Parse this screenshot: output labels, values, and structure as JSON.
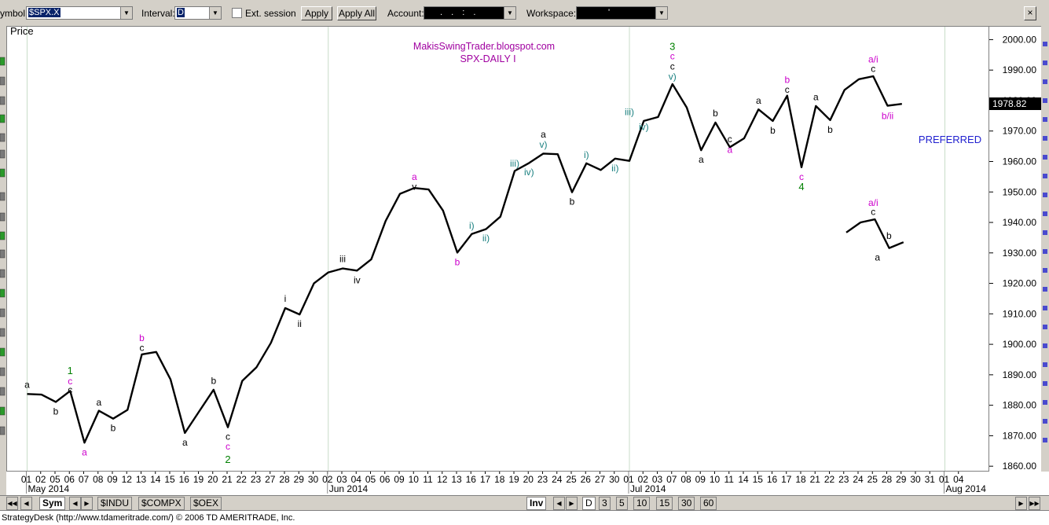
{
  "toolbar": {
    "symbol_label": "ymbol:",
    "symbol_value": "$SPX.X",
    "interval_label": "Interval:",
    "interval_value": "D",
    "ext_session_label": "Ext. session",
    "apply_label": "Apply",
    "apply_all_label": "Apply All",
    "account_label": "Account:",
    "account_value": ". . : .",
    "workspace_label": "Workspace:",
    "workspace_value": "'",
    "close_glyph": "×"
  },
  "panel": {
    "price_label": "Price"
  },
  "price_readout": "1978.82",
  "bottom": {
    "sym_tab": "Sym",
    "symbol_tabs": [
      "$INDU",
      "$COMPX",
      "$OEX"
    ],
    "inv_tab": "Inv",
    "interval_tabs": [
      "D",
      "3",
      "5",
      "10",
      "15",
      "30",
      "60"
    ]
  },
  "status_text": "StrategyDesk (http://www.tdameritrade.com/) © 2006 TD AMERITRADE, Inc.",
  "colors": {
    "line": "#000000",
    "magenta": "#cc00cc",
    "green": "#008000",
    "teal": "#1a8080",
    "blue": "#1f1fcf",
    "purple": "#a000a0",
    "grid": "#c8dcc8"
  },
  "chart_data": {
    "type": "line",
    "title": "MakisSwingTrader.blogspot.com",
    "subtitle": "SPX-DAILY I",
    "ylabel": "Price",
    "ylim": [
      1855,
      2005
    ],
    "y_ticks": [
      "2000.00",
      "1990.00",
      "1980.00",
      "1970.00",
      "1960.00",
      "1950.00",
      "1940.00",
      "1930.00",
      "1920.00",
      "1910.00",
      "1900.00",
      "1890.00",
      "1880.00",
      "1870.00",
      "1860.00"
    ],
    "x_ticks": [
      "01",
      "02",
      "05",
      "06",
      "07",
      "08",
      "09",
      "12",
      "13",
      "14",
      "15",
      "16",
      "19",
      "20",
      "21",
      "22",
      "23",
      "27",
      "28",
      "29",
      "30",
      "02",
      "03",
      "04",
      "05",
      "06",
      "09",
      "10",
      "11",
      "12",
      "13",
      "16",
      "17",
      "18",
      "19",
      "20",
      "23",
      "24",
      "25",
      "26",
      "27",
      "30",
      "01",
      "02",
      "03",
      "07",
      "08",
      "09",
      "10",
      "11",
      "14",
      "15",
      "16",
      "17",
      "18",
      "21",
      "22",
      "23",
      "24",
      "25",
      "28",
      "29",
      "30",
      "31",
      "01",
      "04"
    ],
    "month_labels": [
      {
        "text": "May 2014",
        "index": 0
      },
      {
        "text": "Jun 2014",
        "index": 21
      },
      {
        "text": "Jul 2014",
        "index": 42
      },
      {
        "text": "Aug 2014",
        "index": 64
      }
    ],
    "series": [
      {
        "values": [
          1883.7,
          1883.5,
          1881.1,
          1884.7,
          1867.7,
          1878.2,
          1875.6,
          1878.5,
          1896.7,
          1897.5,
          1888.5,
          1870.9,
          1878.0,
          1885.1,
          1872.8,
          1888.0,
          1892.5,
          1900.5,
          1911.9,
          1909.8,
          1920.0,
          1923.6,
          1924.9,
          1924.2,
          1927.9,
          1940.5,
          1949.4,
          1951.3,
          1950.8,
          1943.9,
          1930.1,
          1936.2,
          1937.8,
          1941.9,
          1956.9,
          1959.5,
          1962.6,
          1962.4,
          1949.9,
          1959.4,
          1957.2,
          1960.96,
          1960.2,
          1973.3,
          1974.6,
          1985.4,
          1977.7,
          1963.7,
          1972.8,
          1964.7,
          1967.6,
          1977.1,
          1973.3,
          1981.6,
          1958.1,
          1978.2,
          1973.6,
          1983.5,
          1987.0,
          1987.98,
          1978.3,
          1978.9
        ],
        "start_index": 0
      },
      {
        "values": [
          1936.7,
          1940.0,
          1941.0,
          1931.6,
          1933.5
        ],
        "start_index": 56
      }
    ],
    "annotations": [
      {
        "text": "1",
        "x": 3,
        "y": 1891.2,
        "color": "green"
      },
      {
        "text": "a",
        "x": 0,
        "y": 1886.8,
        "color": "black"
      },
      {
        "text": "c",
        "x": 3,
        "y": 1887.9,
        "color": "magenta"
      },
      {
        "text": "c",
        "x": 3,
        "y": 1885.1,
        "color": "black"
      },
      {
        "text": "b",
        "x": 2,
        "y": 1878.0,
        "color": "black"
      },
      {
        "text": "a",
        "x": 4,
        "y": 1864.6,
        "color": "magenta"
      },
      {
        "text": "a",
        "x": 5,
        "y": 1880.9,
        "color": "black"
      },
      {
        "text": "b",
        "x": 6,
        "y": 1872.5,
        "color": "black"
      },
      {
        "text": "b",
        "x": 8,
        "y": 1902.1,
        "color": "magenta"
      },
      {
        "text": "c",
        "x": 8,
        "y": 1898.9,
        "color": "black"
      },
      {
        "text": "a",
        "x": 11,
        "y": 1867.8,
        "color": "black"
      },
      {
        "text": "b",
        "x": 13,
        "y": 1888.0,
        "color": "black"
      },
      {
        "text": "c",
        "x": 14,
        "y": 1869.7,
        "color": "black"
      },
      {
        "text": "c",
        "x": 14,
        "y": 1866.5,
        "color": "magenta"
      },
      {
        "text": "2",
        "x": 14,
        "y": 1862.1,
        "color": "green"
      },
      {
        "text": "i",
        "x": 18,
        "y": 1915.0,
        "color": "black"
      },
      {
        "text": "ii",
        "x": 19,
        "y": 1906.7,
        "color": "black"
      },
      {
        "text": "iii",
        "x": 22,
        "y": 1928.0,
        "color": "black"
      },
      {
        "text": "iv",
        "x": 23,
        "y": 1921.1,
        "color": "black"
      },
      {
        "text": "a",
        "x": 27,
        "y": 1955.0,
        "color": "magenta"
      },
      {
        "text": "v",
        "x": 27,
        "y": 1951.8,
        "color": "black"
      },
      {
        "text": "b",
        "x": 30,
        "y": 1927.0,
        "color": "magenta"
      },
      {
        "text": "i)",
        "x": 31,
        "y": 1939.0,
        "color": "teal"
      },
      {
        "text": "ii)",
        "x": 32,
        "y": 1934.9,
        "color": "teal"
      },
      {
        "text": "iii)",
        "x": 34,
        "y": 1959.3,
        "color": "teal"
      },
      {
        "text": "iv)",
        "x": 35,
        "y": 1956.5,
        "color": "teal"
      },
      {
        "text": "a",
        "x": 36,
        "y": 1968.9,
        "color": "black"
      },
      {
        "text": "v)",
        "x": 36,
        "y": 1965.6,
        "color": "teal"
      },
      {
        "text": "b",
        "x": 38,
        "y": 1946.8,
        "color": "black"
      },
      {
        "text": "i)",
        "x": 39,
        "y": 1962.2,
        "color": "teal"
      },
      {
        "text": "ii)",
        "x": 41,
        "y": 1957.8,
        "color": "teal"
      },
      {
        "text": "iii)",
        "x": 42,
        "y": 1976.3,
        "color": "teal"
      },
      {
        "text": "iv)",
        "x": 43,
        "y": 1971.3,
        "color": "teal"
      },
      {
        "text": "3",
        "x": 45,
        "y": 1997.6,
        "color": "green"
      },
      {
        "text": "c",
        "x": 45,
        "y": 1994.5,
        "color": "magenta"
      },
      {
        "text": "c",
        "x": 45,
        "y": 1991.2,
        "color": "black"
      },
      {
        "text": "v)",
        "x": 45,
        "y": 1987.9,
        "color": "teal"
      },
      {
        "text": "a",
        "x": 47,
        "y": 1960.6,
        "color": "black"
      },
      {
        "text": "b",
        "x": 48,
        "y": 1975.9,
        "color": "black"
      },
      {
        "text": "c",
        "x": 49,
        "y": 1967.3,
        "color": "black"
      },
      {
        "text": "a",
        "x": 49,
        "y": 1963.9,
        "color": "magenta"
      },
      {
        "text": "a",
        "x": 51,
        "y": 1980.0,
        "color": "black"
      },
      {
        "text": "b",
        "x": 52,
        "y": 1970.2,
        "color": "black"
      },
      {
        "text": "b",
        "x": 53,
        "y": 1986.8,
        "color": "magenta"
      },
      {
        "text": "c",
        "x": 53,
        "y": 1983.6,
        "color": "black"
      },
      {
        "text": "c",
        "x": 54,
        "y": 1955.0,
        "color": "magenta"
      },
      {
        "text": "4",
        "x": 54,
        "y": 1951.6,
        "color": "green"
      },
      {
        "text": "a",
        "x": 55,
        "y": 1981.1,
        "color": "black"
      },
      {
        "text": "b",
        "x": 56,
        "y": 1970.5,
        "color": "black"
      },
      {
        "text": "a/i",
        "x": 59,
        "y": 1993.5,
        "color": "magenta"
      },
      {
        "text": "c",
        "x": 59,
        "y": 1990.4,
        "color": "black"
      },
      {
        "text": "b/ii",
        "x": 60,
        "y": 1975.0,
        "color": "magenta"
      },
      {
        "text": "a/i",
        "x": 59,
        "y": 1946.5,
        "color": "magenta"
      },
      {
        "text": "c",
        "x": 59,
        "y": 1943.5,
        "color": "black"
      },
      {
        "text": "a",
        "x": 59.3,
        "y": 1928.5,
        "color": "black"
      },
      {
        "text": "b",
        "x": 60.1,
        "y": 1935.6,
        "color": "black"
      }
    ],
    "side_label": "PREFERRED",
    "grid": "vertical at month starts"
  }
}
